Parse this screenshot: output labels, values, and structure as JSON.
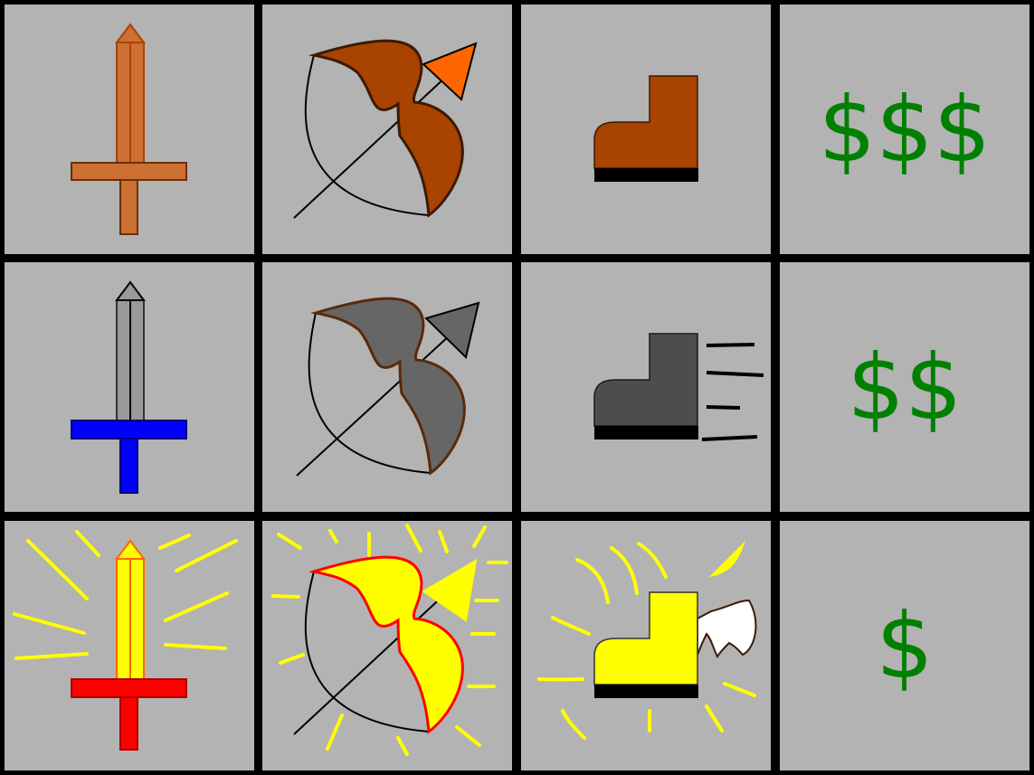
{
  "colors": {
    "background": "#b3b3b3",
    "border": "#000000",
    "price_green": "#008000",
    "bronze": "#cc7033",
    "bronze_dark": "#a84300",
    "iron": "#808080",
    "iron_dark": "#4d4d4d",
    "gold": "#ffff00",
    "gold_trim": "#ff0000",
    "blue_guard": "#0000ff"
  },
  "rows": [
    {
      "tier": "bronze",
      "items": [
        {
          "icon": "bronze-sword-icon"
        },
        {
          "icon": "bronze-bow-icon"
        },
        {
          "icon": "bronze-boot-icon"
        }
      ],
      "price": "$$$"
    },
    {
      "tier": "iron",
      "items": [
        {
          "icon": "iron-sword-icon"
        },
        {
          "icon": "iron-bow-icon"
        },
        {
          "icon": "speed-boot-icon"
        }
      ],
      "price": "$$"
    },
    {
      "tier": "gold",
      "items": [
        {
          "icon": "golden-sword-icon"
        },
        {
          "icon": "golden-bow-icon"
        },
        {
          "icon": "winged-boot-icon"
        }
      ],
      "price": "$"
    }
  ]
}
